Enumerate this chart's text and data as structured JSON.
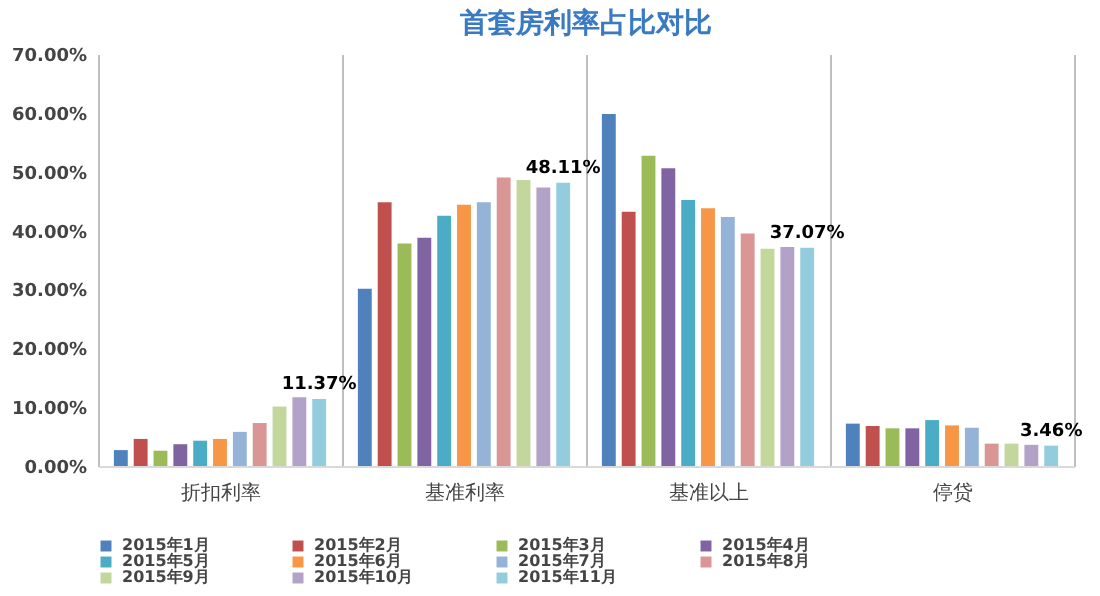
{
  "chart_data": {
    "type": "bar",
    "title": "首套房利率占比对比",
    "categories": [
      "折扣利率",
      "基准利率",
      "基准以上",
      "停贷"
    ],
    "series": [
      {
        "name": "2015年1月",
        "color": "#4f81bd",
        "values": [
          2.7,
          30.1,
          59.8,
          7.2
        ]
      },
      {
        "name": "2015年2月",
        "color": "#c0504d",
        "values": [
          4.6,
          44.8,
          43.2,
          6.8
        ]
      },
      {
        "name": "2015年3月",
        "color": "#9bbb59",
        "values": [
          2.6,
          37.8,
          52.7,
          6.4
        ]
      },
      {
        "name": "2015年4月",
        "color": "#8064a2",
        "values": [
          3.7,
          38.8,
          50.6,
          6.4
        ]
      },
      {
        "name": "2015年5月",
        "color": "#4bacc6",
        "values": [
          4.3,
          42.5,
          45.2,
          7.8
        ]
      },
      {
        "name": "2015年6月",
        "color": "#f79646",
        "values": [
          4.6,
          44.4,
          43.8,
          6.9
        ]
      },
      {
        "name": "2015年7月",
        "color": "#95b3d7",
        "values": [
          5.8,
          44.8,
          42.3,
          6.5
        ]
      },
      {
        "name": "2015年8月",
        "color": "#d99694",
        "values": [
          7.3,
          49.0,
          39.5,
          3.8
        ]
      },
      {
        "name": "2015年9月",
        "color": "#c3d69b",
        "values": [
          10.1,
          48.6,
          36.9,
          3.8
        ]
      },
      {
        "name": "2015年10月",
        "color": "#b3a2c7",
        "values": [
          11.7,
          47.3,
          37.2,
          3.6
        ]
      },
      {
        "name": "2015年11月",
        "color": "#93cddd",
        "values": [
          11.37,
          48.11,
          37.07,
          3.46
        ],
        "value_labels": [
          "11.37%",
          "48.11%",
          "37.07%",
          "3.46%"
        ]
      }
    ],
    "ylim": [
      0,
      70
    ],
    "yticks": [
      {
        "value": 0,
        "label": "0.00%"
      },
      {
        "value": 10,
        "label": "10.00%"
      },
      {
        "value": 20,
        "label": "20.00%"
      },
      {
        "value": 30,
        "label": "30.00%"
      },
      {
        "value": 40,
        "label": "40.00%"
      },
      {
        "value": 50,
        "label": "50.00%"
      },
      {
        "value": 60,
        "label": "60.00%"
      },
      {
        "value": 70,
        "label": "70.00%"
      }
    ],
    "grid": "x",
    "legend": "bottom"
  }
}
